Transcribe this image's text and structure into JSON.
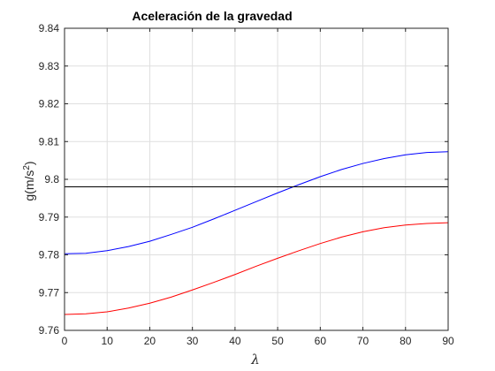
{
  "chart_data": {
    "type": "line",
    "title": "Aceleración de la gravedad",
    "xlabel": "λ",
    "ylabel": {
      "base": "g(m/s",
      "sup": "2",
      "end": ")"
    },
    "xlim": [
      0,
      90
    ],
    "ylim": [
      9.76,
      9.84
    ],
    "xticks": [
      0,
      10,
      20,
      30,
      40,
      50,
      60,
      70,
      80,
      90
    ],
    "yticks": [
      9.76,
      9.77,
      9.78,
      9.79,
      9.8,
      9.81,
      9.82,
      9.83,
      9.84
    ],
    "ytick_labels": [
      "9.76",
      "9.77",
      "9.78",
      "9.79",
      "9.8",
      "9.81",
      "9.82",
      "9.83",
      "9.84"
    ],
    "grid": true,
    "series": [
      {
        "color": "#0000ff",
        "x": [
          0,
          5,
          10,
          15,
          20,
          25,
          30,
          35,
          40,
          45,
          50,
          55,
          60,
          65,
          70,
          75,
          80,
          85,
          90
        ],
        "y": [
          9.7803,
          9.7804,
          9.7811,
          9.7822,
          9.7836,
          9.7854,
          9.7873,
          9.7895,
          9.7918,
          9.7941,
          9.7964,
          9.7986,
          9.8007,
          9.8026,
          9.8042,
          9.8055,
          9.8065,
          9.8071,
          9.8073
        ]
      },
      {
        "color": "#ff0000",
        "x": [
          0,
          5,
          10,
          15,
          20,
          25,
          30,
          35,
          40,
          45,
          50,
          55,
          60,
          65,
          70,
          75,
          80,
          85,
          90
        ],
        "y": [
          9.7642,
          9.7644,
          9.7649,
          9.7659,
          9.7672,
          9.7688,
          9.7707,
          9.7727,
          9.7748,
          9.777,
          9.7791,
          9.7811,
          9.783,
          9.7847,
          9.7861,
          9.7872,
          9.7879,
          9.7883,
          9.7885
        ]
      },
      {
        "color": "#000000",
        "x": [
          0,
          90
        ],
        "y": [
          9.798,
          9.798
        ]
      }
    ]
  }
}
